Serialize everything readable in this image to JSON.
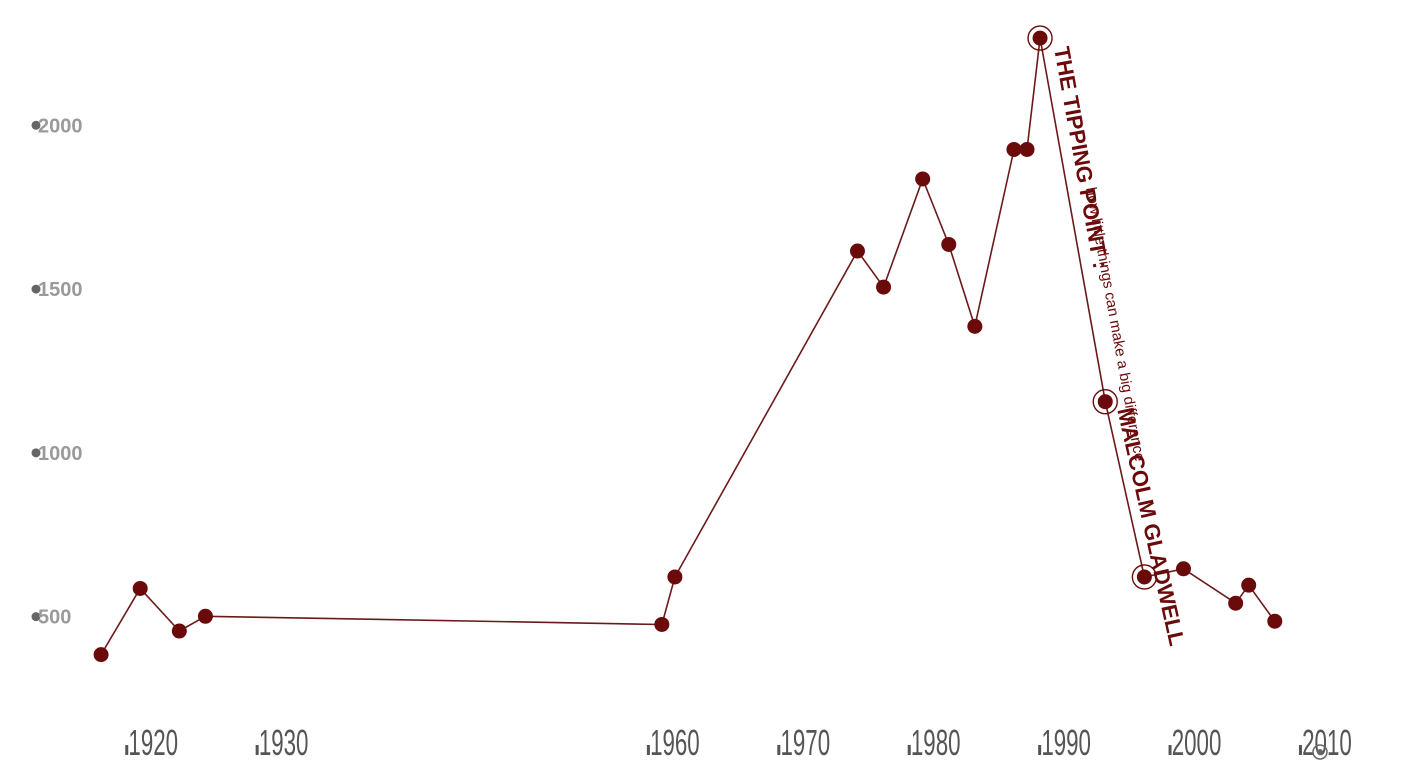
{
  "chart_data": {
    "type": "line",
    "x": [
      1916,
      1919,
      1922,
      1924,
      1959,
      1960,
      1974,
      1976,
      1979,
      1981,
      1983,
      1986,
      1987,
      1988,
      1993,
      1996,
      1999,
      2003,
      2004,
      2006
    ],
    "values": [
      378,
      580,
      450,
      495,
      470,
      615,
      1610,
      1500,
      1830,
      1630,
      1380,
      1920,
      1920,
      2260,
      1150,
      615,
      640,
      535,
      590,
      480
    ],
    "xticks": [
      "1920",
      "1930",
      "1960",
      "1970",
      "1980",
      "1990",
      "2000",
      "2010"
    ],
    "yticks": [
      "500",
      "1000",
      "1500",
      "2000"
    ],
    "xlim": [
      1914,
      2011
    ],
    "ylim": [
      270,
      2300
    ],
    "grid": false,
    "colors": {
      "series": "#6b0a0a",
      "line": "#6b1a1a",
      "ytick": "#9a9a9a",
      "xtick": "#555555"
    },
    "annotations": {
      "title": "THE TIPPING POINT :",
      "subtitle": "how little things can make a big difference",
      "author": "MALCOLM GLADWELL"
    },
    "highlighted": [
      1988,
      1993,
      1996
    ]
  }
}
